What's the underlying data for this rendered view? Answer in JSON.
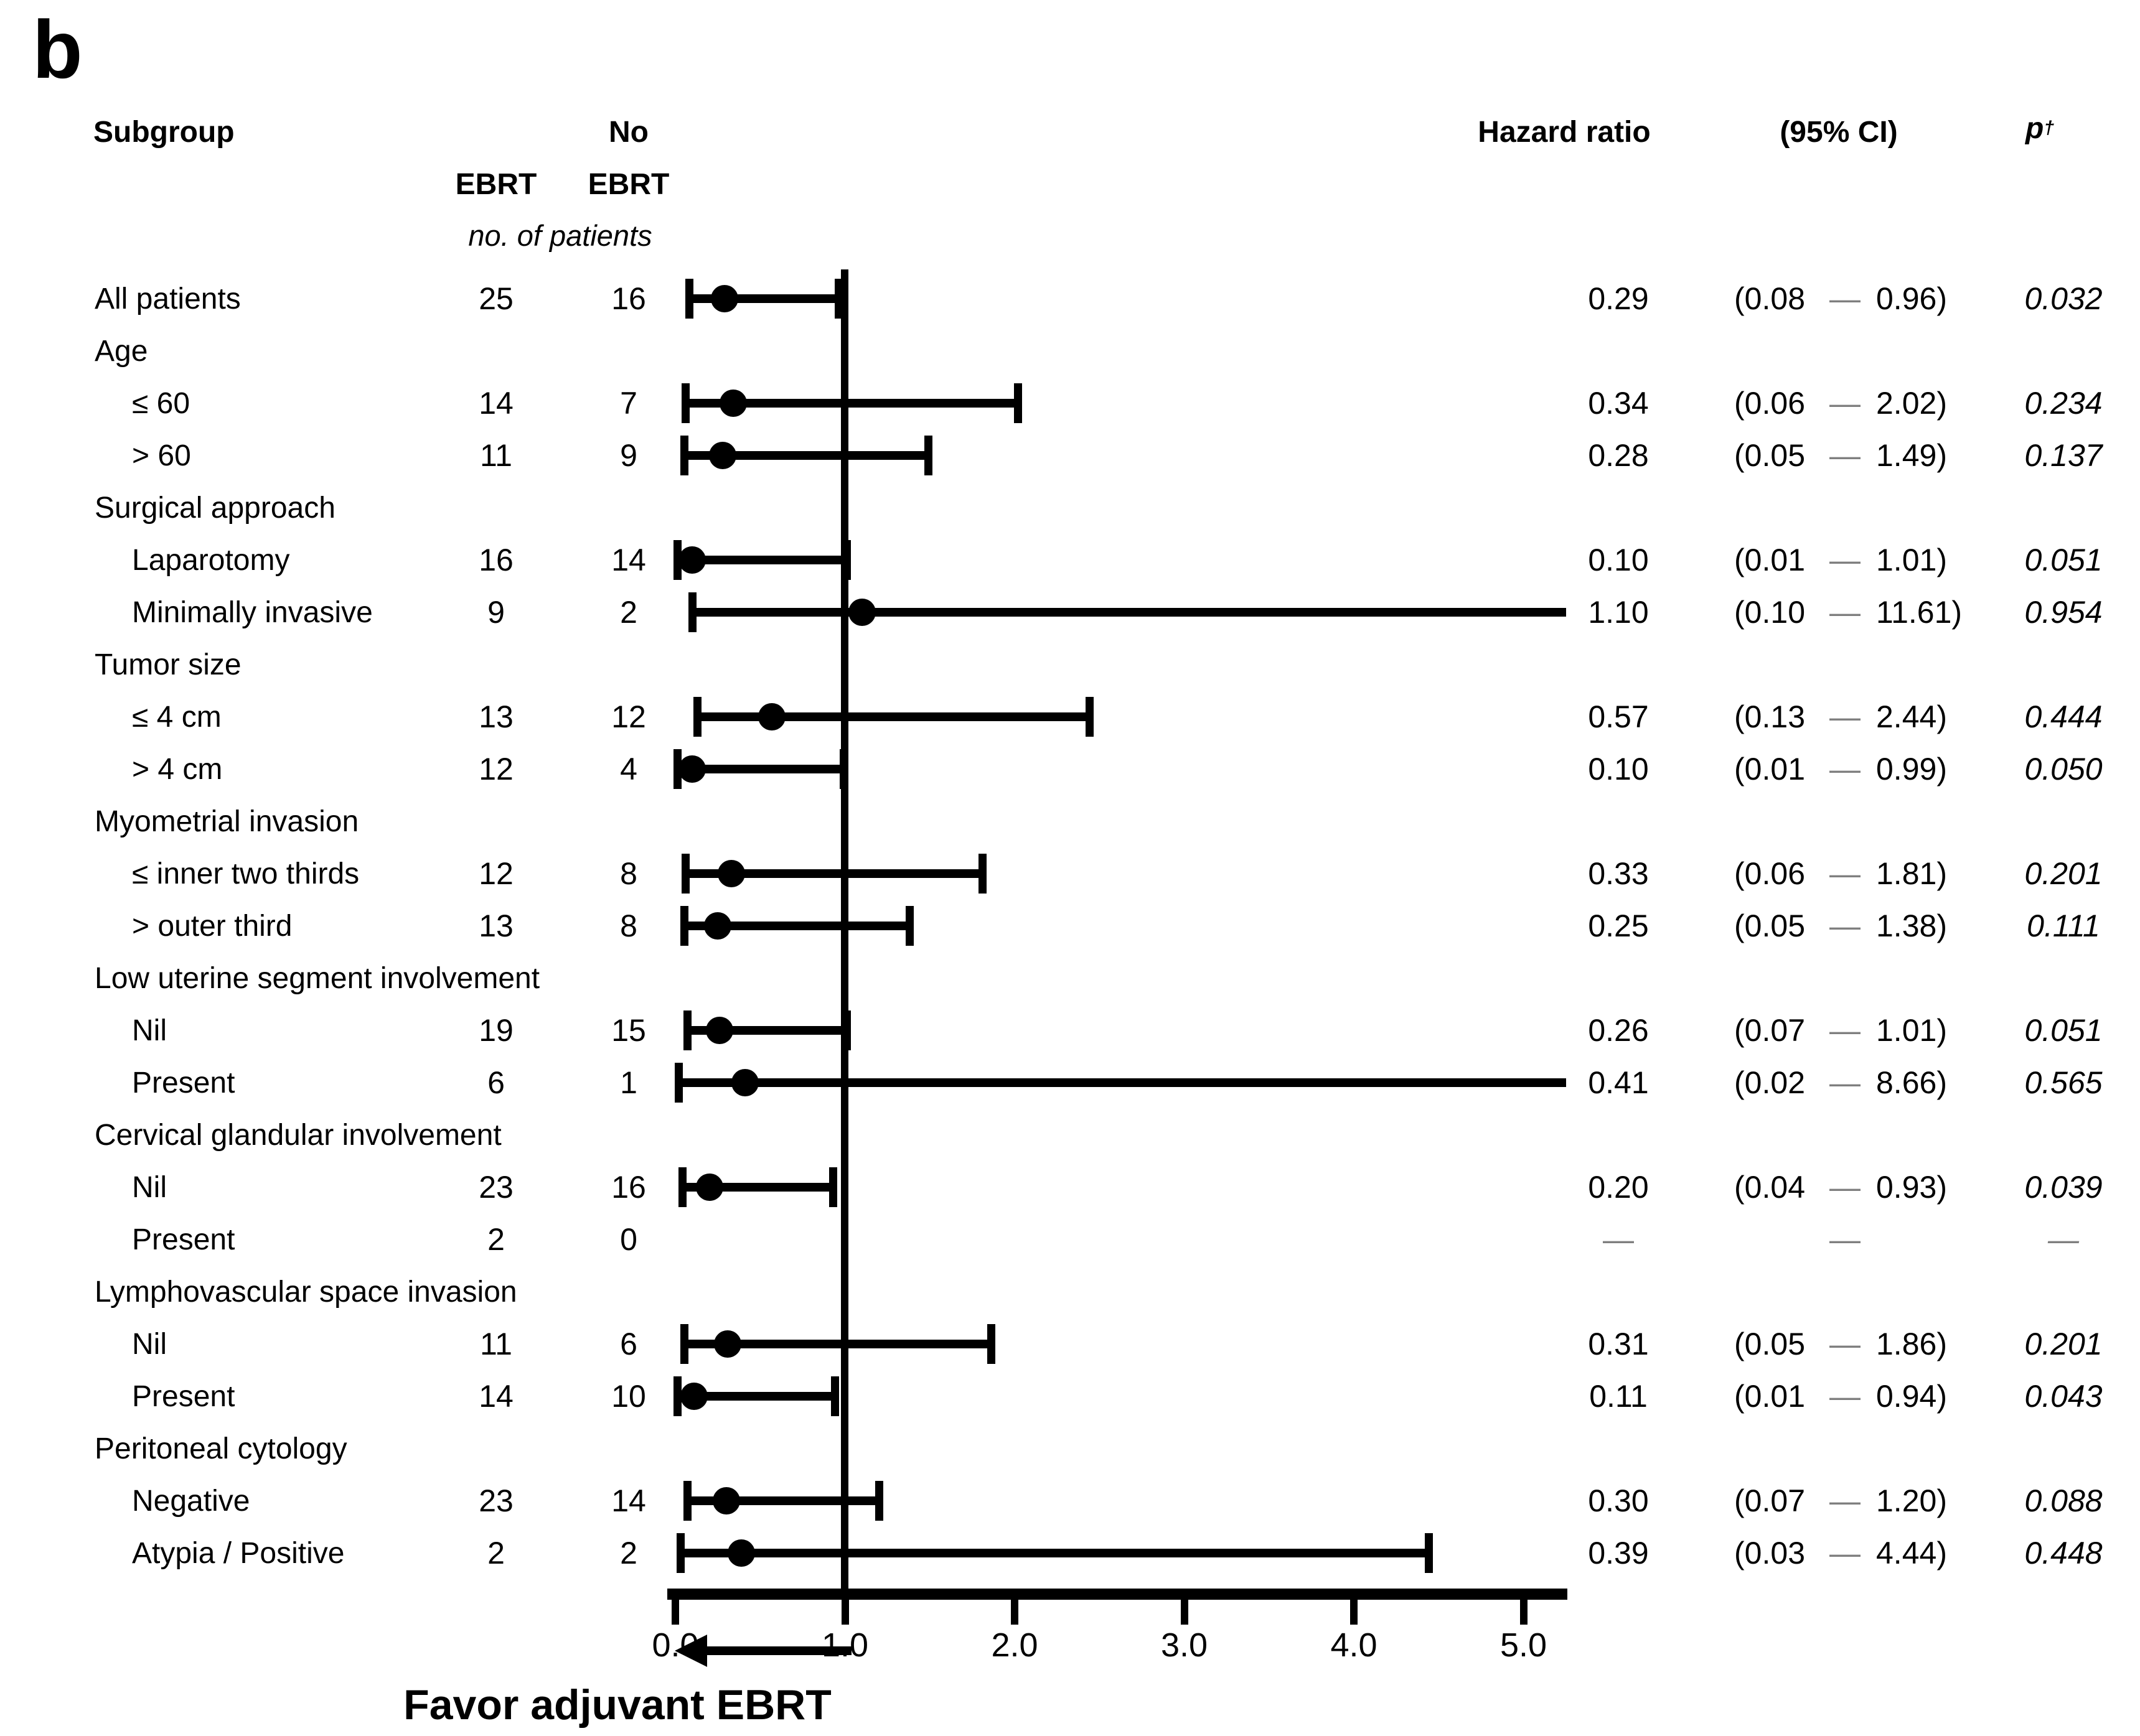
{
  "panel_label": "b",
  "header": {
    "subgroup": "Subgroup",
    "no_label": "No",
    "ebrt_col1": "EBRT",
    "ebrt_col2": "EBRT",
    "patients_note": "no. of patients",
    "hazard_ratio": "Hazard ratio",
    "ci": "(95% CI)",
    "p_label": "p",
    "p_dagger": "†"
  },
  "strings": {
    "ci_dash": "—",
    "empty_dash": "—"
  },
  "axis": {
    "tick_labels": [
      "0.0",
      "1.0",
      "2.0",
      "3.0",
      "4.0",
      "5.0"
    ]
  },
  "footer": {
    "favor_label": "Favor adjuvant EBRT"
  },
  "chart_data": {
    "type": "forest",
    "x_ticks": [
      0.0,
      1.0,
      2.0,
      3.0,
      4.0,
      5.0
    ],
    "xlim": [
      0.0,
      5.25
    ],
    "reference_line": 1.0,
    "grid": false,
    "arrow_annotation": {
      "text": "Favor adjuvant EBRT",
      "direction": "left",
      "from_x": 1.0,
      "to_x": 0.0
    },
    "columns": [
      "Subgroup",
      "EBRT",
      "No EBRT",
      "Hazard ratio",
      "(95% CI)",
      "p†"
    ],
    "rows": [
      {
        "label": "All patients",
        "indent": 0,
        "ebrt": "25",
        "no_ebrt": "16",
        "hr": 0.29,
        "lo": 0.08,
        "hi": 0.96,
        "hr_text": "0.29",
        "ci_lo_text": "(0.08",
        "ci_hi_text": "0.96)",
        "p_text": "0.032"
      },
      {
        "label": "Age",
        "group": true
      },
      {
        "label": "≤ 60",
        "indent": 1,
        "ebrt": "14",
        "no_ebrt": "7",
        "hr": 0.34,
        "lo": 0.06,
        "hi": 2.02,
        "hr_text": "0.34",
        "ci_lo_text": "(0.06",
        "ci_hi_text": "2.02)",
        "p_text": "0.234"
      },
      {
        "label": "> 60",
        "indent": 1,
        "ebrt": "11",
        "no_ebrt": "9",
        "hr": 0.28,
        "lo": 0.05,
        "hi": 1.49,
        "hr_text": "0.28",
        "ci_lo_text": "(0.05",
        "ci_hi_text": "1.49)",
        "p_text": "0.137"
      },
      {
        "label": "Surgical approach",
        "group": true
      },
      {
        "label": "Laparotomy",
        "indent": 1,
        "ebrt": "16",
        "no_ebrt": "14",
        "hr": 0.1,
        "lo": 0.01,
        "hi": 1.01,
        "hr_text": "0.10",
        "ci_lo_text": "(0.01",
        "ci_hi_text": "1.01)",
        "p_text": "0.051"
      },
      {
        "label": "Minimally invasive",
        "indent": 1,
        "ebrt": "9",
        "no_ebrt": "2",
        "hr": 1.1,
        "lo": 0.1,
        "hi": 11.61,
        "hr_text": "1.10",
        "ci_lo_text": "(0.10",
        "ci_hi_text": "11.61)",
        "p_text": "0.954"
      },
      {
        "label": "Tumor size",
        "group": true
      },
      {
        "label": "≤ 4 cm",
        "indent": 1,
        "ebrt": "13",
        "no_ebrt": "12",
        "hr": 0.57,
        "lo": 0.13,
        "hi": 2.44,
        "hr_text": "0.57",
        "ci_lo_text": "(0.13",
        "ci_hi_text": "2.44)",
        "p_text": "0.444"
      },
      {
        "label": "> 4 cm",
        "indent": 1,
        "ebrt": "12",
        "no_ebrt": "4",
        "hr": 0.1,
        "lo": 0.01,
        "hi": 0.99,
        "hr_text": "0.10",
        "ci_lo_text": "(0.01",
        "ci_hi_text": "0.99)",
        "p_text": "0.050"
      },
      {
        "label": "Myometrial invasion",
        "group": true
      },
      {
        "label": "≤ inner two thirds",
        "indent": 1,
        "ebrt": "12",
        "no_ebrt": "8",
        "hr": 0.33,
        "lo": 0.06,
        "hi": 1.81,
        "hr_text": "0.33",
        "ci_lo_text": "(0.06",
        "ci_hi_text": "1.81)",
        "p_text": "0.201"
      },
      {
        "label": "> outer third",
        "indent": 1,
        "ebrt": "13",
        "no_ebrt": "8",
        "hr": 0.25,
        "lo": 0.05,
        "hi": 1.38,
        "hr_text": "0.25",
        "ci_lo_text": "(0.05",
        "ci_hi_text": "1.38)",
        "p_text": "0.111"
      },
      {
        "label": "Low uterine segment involvement",
        "group": true
      },
      {
        "label": "Nil",
        "indent": 1,
        "ebrt": "19",
        "no_ebrt": "15",
        "hr": 0.26,
        "lo": 0.07,
        "hi": 1.01,
        "hr_text": "0.26",
        "ci_lo_text": "(0.07",
        "ci_hi_text": "1.01)",
        "p_text": "0.051"
      },
      {
        "label": "Present",
        "indent": 1,
        "ebrt": "6",
        "no_ebrt": "1",
        "hr": 0.41,
        "lo": 0.02,
        "hi": 8.66,
        "hr_text": "0.41",
        "ci_lo_text": "(0.02",
        "ci_hi_text": "8.66)",
        "p_text": "0.565"
      },
      {
        "label": "Cervical glandular involvement",
        "group": true
      },
      {
        "label": "Nil",
        "indent": 1,
        "ebrt": "23",
        "no_ebrt": "16",
        "hr": 0.2,
        "lo": 0.04,
        "hi": 0.93,
        "hr_text": "0.20",
        "ci_lo_text": "(0.04",
        "ci_hi_text": "0.93)",
        "p_text": "0.039"
      },
      {
        "label": "Present",
        "indent": 1,
        "ebrt": "2",
        "no_ebrt": "0",
        "no_plot": true,
        "hr_text": "—",
        "ci_mid_only": true,
        "p_text": "—"
      },
      {
        "label": "Lymphovascular space invasion",
        "group": true
      },
      {
        "label": "Nil",
        "indent": 1,
        "ebrt": "11",
        "no_ebrt": "6",
        "hr": 0.31,
        "lo": 0.05,
        "hi": 1.86,
        "hr_text": "0.31",
        "ci_lo_text": "(0.05",
        "ci_hi_text": "1.86)",
        "p_text": "0.201"
      },
      {
        "label": "Present",
        "indent": 1,
        "ebrt": "14",
        "no_ebrt": "10",
        "hr": 0.11,
        "lo": 0.01,
        "hi": 0.94,
        "hr_text": "0.11",
        "ci_lo_text": "(0.01",
        "ci_hi_text": "0.94)",
        "p_text": "0.043"
      },
      {
        "label": "Peritoneal cytology",
        "group": true
      },
      {
        "label": "Negative",
        "indent": 1,
        "ebrt": "23",
        "no_ebrt": "14",
        "hr": 0.3,
        "lo": 0.07,
        "hi": 1.2,
        "hr_text": "0.30",
        "ci_lo_text": "(0.07",
        "ci_hi_text": "1.20)",
        "p_text": "0.088"
      },
      {
        "label": "Atypia / Positive",
        "indent": 1,
        "ebrt": "2",
        "no_ebrt": "2",
        "hr": 0.39,
        "lo": 0.03,
        "hi": 4.44,
        "hr_text": "0.39",
        "ci_lo_text": "(0.03",
        "ci_hi_text": "4.44)",
        "p_text": "0.448"
      }
    ]
  }
}
